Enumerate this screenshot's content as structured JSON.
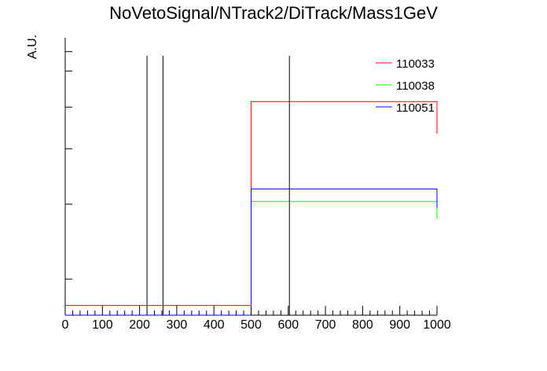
{
  "chart_data": {
    "type": "step",
    "title": "NoVetoSignal/NTrack2/DiTrack/Mass1GeV",
    "xlabel": "",
    "ylabel": "A.U.",
    "xlim": [
      0,
      1000
    ],
    "ylim": [
      0,
      1
    ],
    "x_ticks": [
      "0",
      "100",
      "200",
      "300",
      "400",
      "500",
      "600",
      "700",
      "800",
      "900",
      "1000"
    ],
    "bin_edges": [
      0,
      500,
      1000
    ],
    "series": [
      {
        "name": "110033",
        "color": "#ff0000",
        "values": [
          0.035,
          0.77
        ]
      },
      {
        "name": "110038",
        "color": "#00ff00",
        "values": [
          0.0,
          0.41
        ]
      },
      {
        "name": "110051",
        "color": "#0000ff",
        "values": [
          0.0,
          0.455
        ]
      }
    ],
    "vertical_lines": [
      {
        "x": 220,
        "top": 0.935,
        "color": "#000000"
      },
      {
        "x": 263,
        "top": 0.935,
        "color": "#000000"
      },
      {
        "x": 603,
        "top": 0.935,
        "color": "#000000"
      }
    ],
    "grid": false,
    "legend_position": "top-right"
  }
}
